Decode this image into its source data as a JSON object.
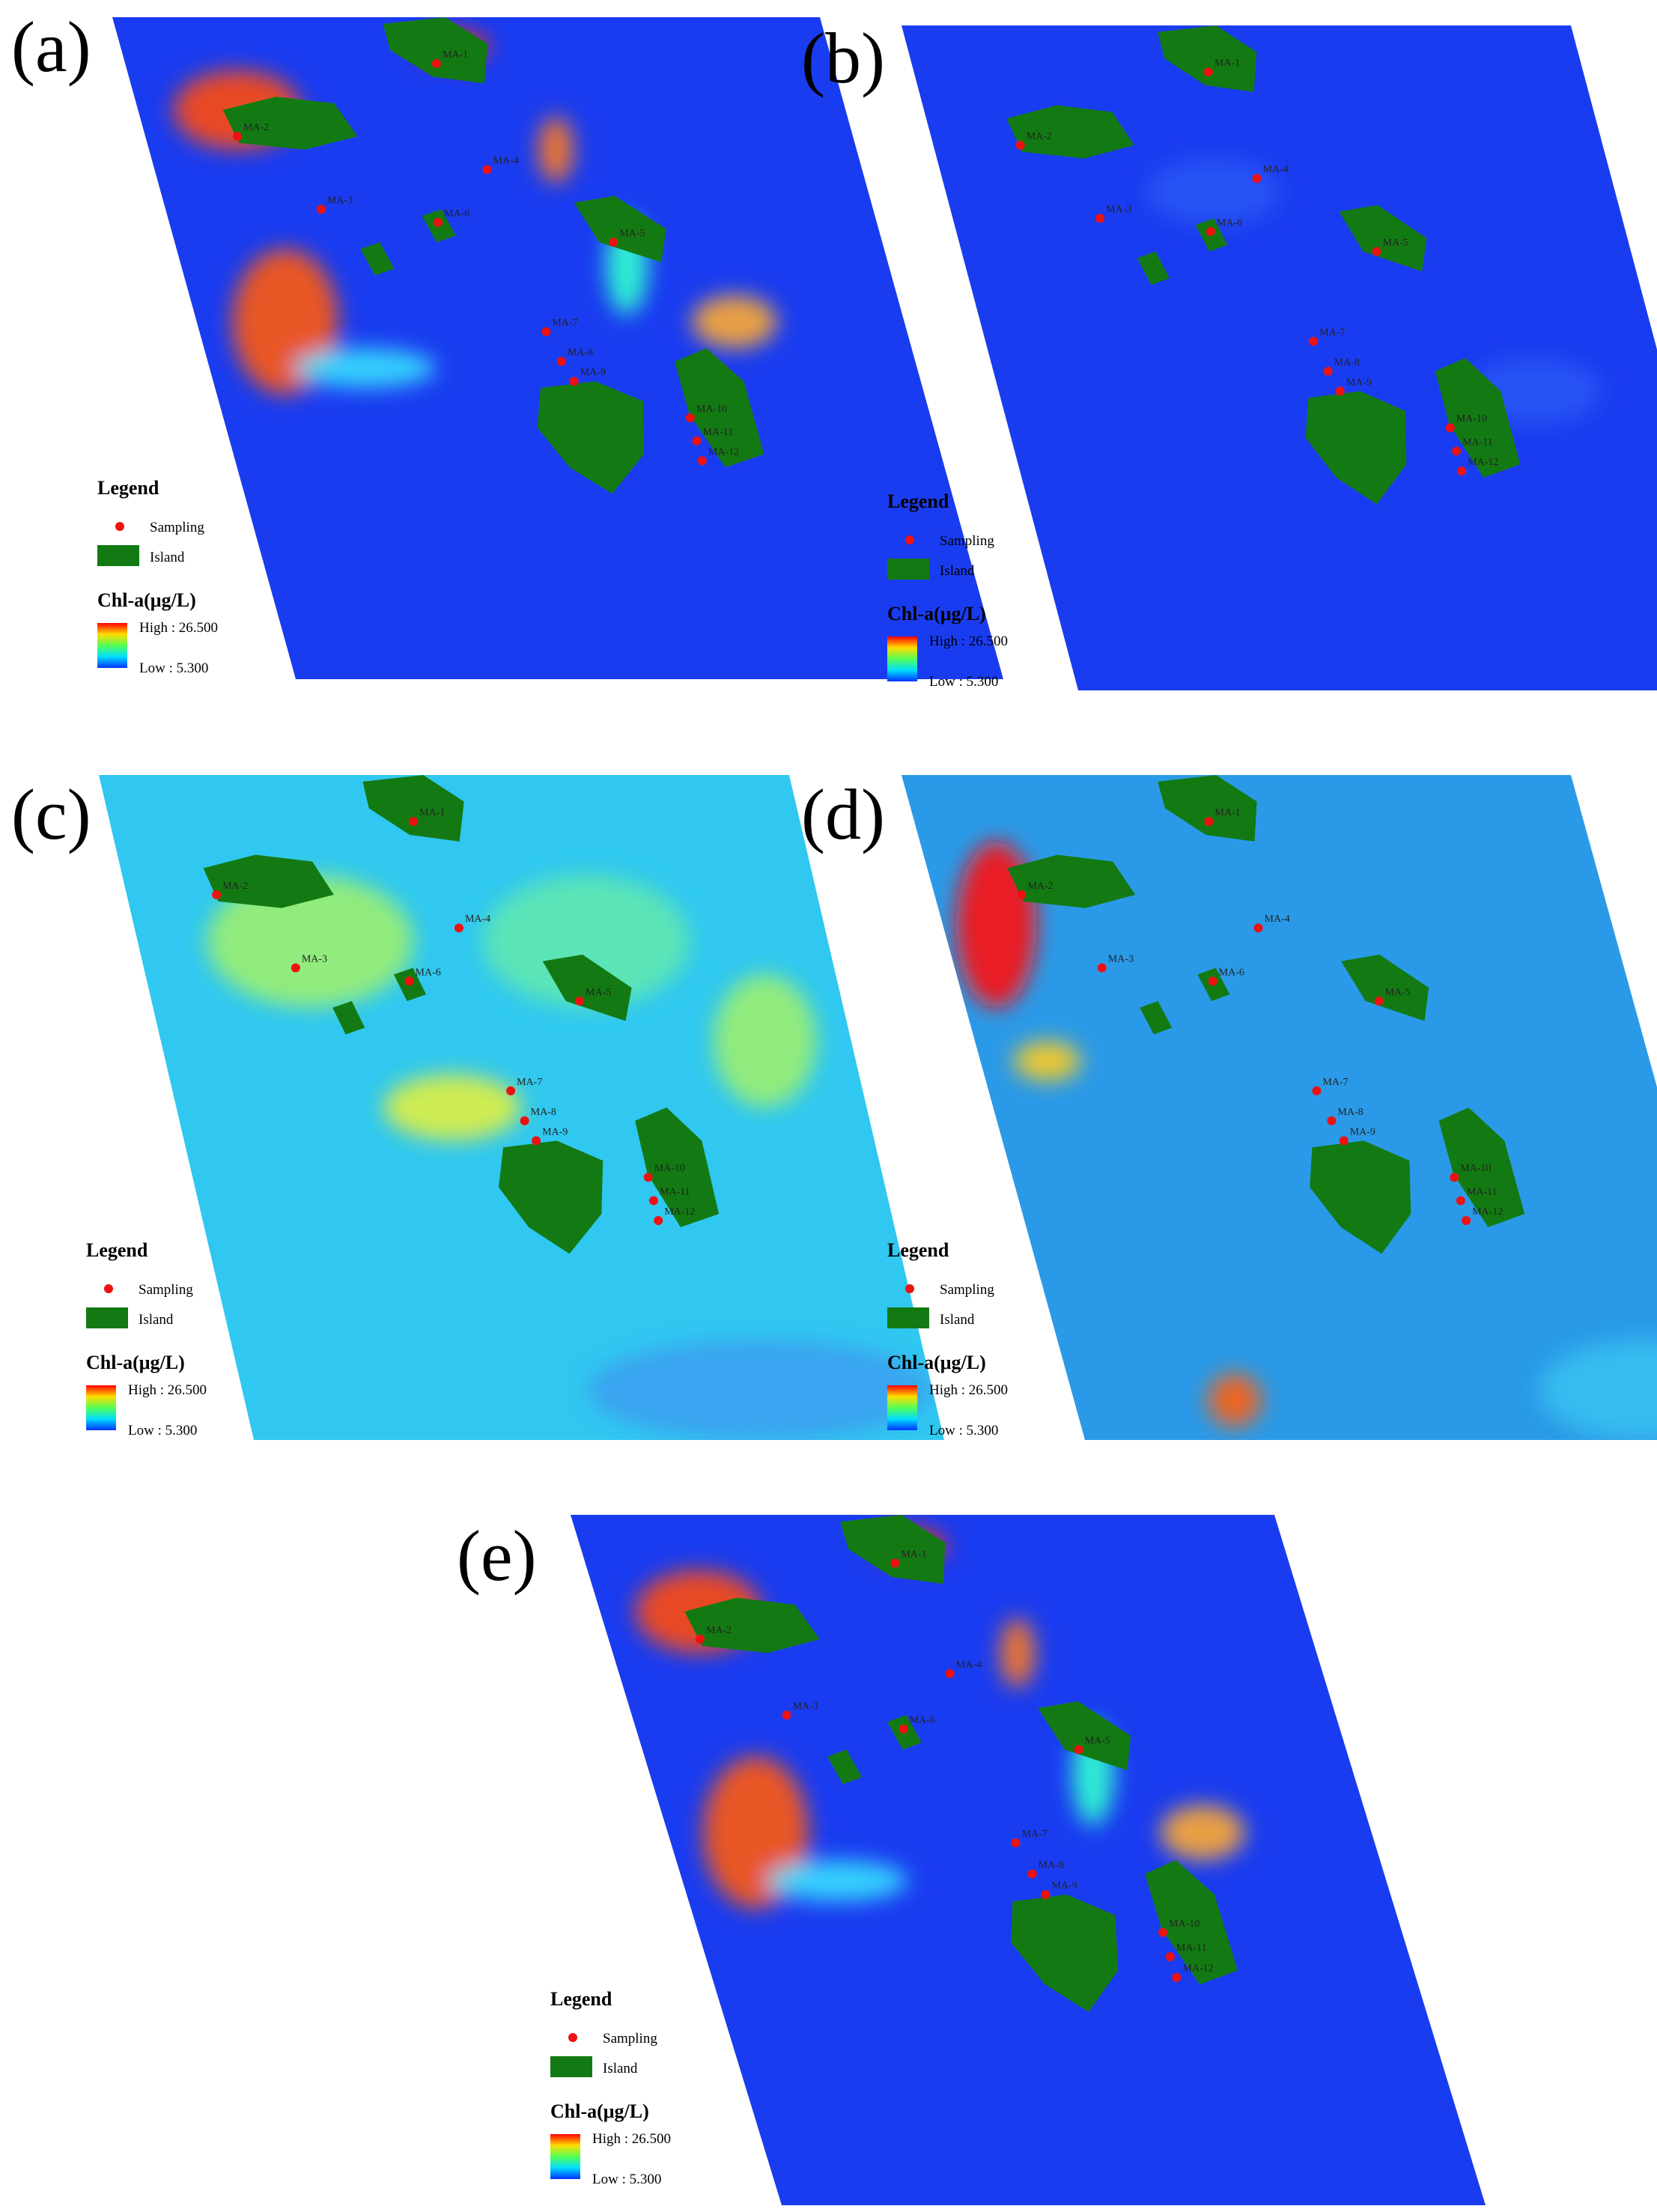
{
  "panels": [
    {
      "label": "(a)"
    },
    {
      "label": "(b)"
    },
    {
      "label": "(c)"
    },
    {
      "label": "(d)"
    },
    {
      "label": "(e)"
    }
  ],
  "legend": {
    "title": "Legend",
    "sampling": "Sampling",
    "island": "Island",
    "scale_title": "Chl-a(μg/L)",
    "high": "High : 26.500",
    "low": "Low : 5.300"
  },
  "stations": [
    "MA-1",
    "MA-2",
    "MA-3",
    "MA-4",
    "MA-5",
    "MA-6",
    "MA-7",
    "MA-8",
    "MA-9",
    "MA-10",
    "MA-11",
    "MA-12"
  ]
}
